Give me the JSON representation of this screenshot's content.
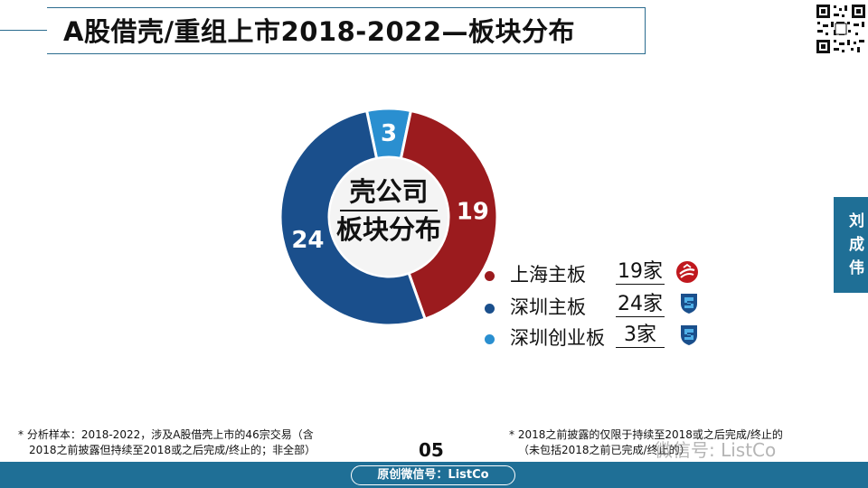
{
  "header": {
    "title": "A股借壳/重组上市2018-2022—板块分布"
  },
  "side_tab": {
    "text": "刘成伟"
  },
  "chart_data": {
    "type": "pie",
    "categories": [
      "上海主板",
      "深圳主板",
      "深圳创业板"
    ],
    "values": [
      19,
      24,
      3
    ],
    "colors": [
      "#9b1b1e",
      "#1a4f8c",
      "#2a8fd0"
    ],
    "center_label_line1": "壳公司",
    "center_label_line2": "板块分布"
  },
  "legend": {
    "items": [
      {
        "label": "上海主板",
        "count": "19家",
        "color": "#9b1b1e"
      },
      {
        "label": "深圳主板",
        "count": "24家",
        "color": "#1a4f8c"
      },
      {
        "label": "深圳创业板",
        "count": "3家",
        "color": "#2a8fd0"
      }
    ]
  },
  "footnotes": {
    "left_line1": "*  分析样本：2018-2022，涉及A股借壳上市的46宗交易（含",
    "left_line2": "2018之前披露但持续至2018或之后完成/终止的；非全部）",
    "right_line1": "*  2018之前披露的仅限于持续至2018或之后完成/终止的",
    "right_line2": "（未包括2018之前已完成/终止的）"
  },
  "page_number": "05",
  "bottom_badge": "原创微信号：ListCo",
  "watermark": "微信号: ListCo"
}
